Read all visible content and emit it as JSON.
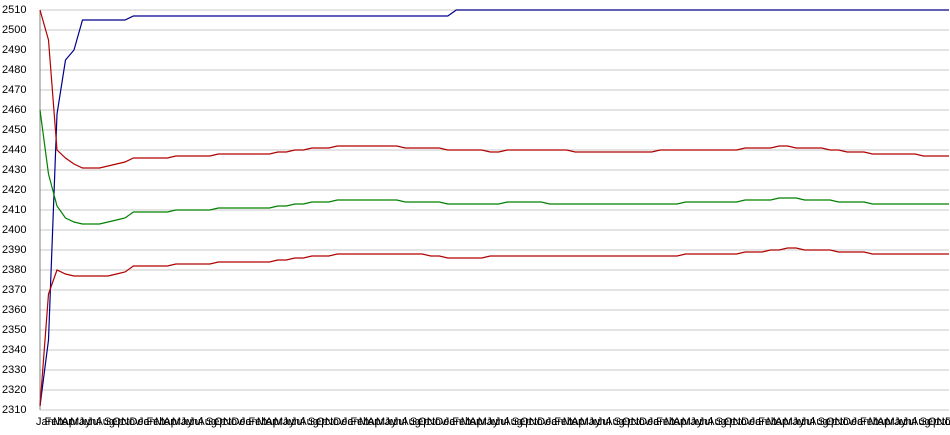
{
  "chart_data": {
    "type": "line",
    "categories": [
      "Jan",
      "Feb",
      "Mar",
      "Apr",
      "May",
      "Jun",
      "Jul",
      "Aug",
      "Sep",
      "Oct",
      "Nov",
      "Dec",
      "Jan",
      "Feb",
      "Mar",
      "Apr",
      "May",
      "Jun",
      "Jul",
      "Aug",
      "Sep",
      "Oct",
      "Nov",
      "Dec",
      "Jan",
      "Feb",
      "Mar",
      "Apr",
      "May",
      "Jun",
      "Jul",
      "Aug",
      "Sep",
      "Oct",
      "Nov",
      "Dec",
      "Jan",
      "Feb",
      "Mar",
      "Apr",
      "May",
      "Jun",
      "Jul",
      "Aug",
      "Sep",
      "Oct",
      "Nov",
      "Dec",
      "Jan",
      "Feb",
      "Mar",
      "Apr",
      "May",
      "Jun",
      "Jul",
      "Aug",
      "Sep",
      "Oct",
      "Nov",
      "Dec",
      "Jan",
      "Feb",
      "Mar",
      "Apr",
      "May",
      "Jun",
      "Jul",
      "Aug",
      "Sep",
      "Oct",
      "Nov",
      "Dec",
      "Jan",
      "Feb",
      "Mar",
      "Apr",
      "May",
      "Jun",
      "Jul",
      "Aug",
      "Sep",
      "Oct",
      "Nov",
      "Dec",
      "Jan",
      "Feb",
      "Mar",
      "Apr",
      "May",
      "Jun",
      "Jul",
      "Aug",
      "Sep",
      "Oct",
      "Nov",
      "Dec",
      "Jan",
      "Feb",
      "Mar",
      "Apr",
      "May",
      "Jun",
      "Jul",
      "Aug",
      "Sep",
      "Oct",
      "Nov",
      "Dec"
    ],
    "series": [
      {
        "color": "#00008b",
        "values": [
          2312,
          2345,
          2458,
          2485,
          2490,
          2505,
          2505,
          2505,
          2505,
          2505,
          2505,
          2507,
          2507,
          2507,
          2507,
          2507,
          2507,
          2507,
          2507,
          2507,
          2507,
          2507,
          2507,
          2507,
          2507,
          2507,
          2507,
          2507,
          2507,
          2507,
          2507,
          2507,
          2507,
          2507,
          2507,
          2507,
          2507,
          2507,
          2507,
          2507,
          2507,
          2507,
          2507,
          2507,
          2507,
          2507,
          2507,
          2507,
          2507,
          2510,
          2510,
          2510,
          2510,
          2510,
          2510,
          2510,
          2510,
          2510,
          2510,
          2510,
          2510,
          2510,
          2510,
          2510,
          2510,
          2510,
          2510,
          2510,
          2510,
          2510,
          2510,
          2510,
          2510,
          2510,
          2510,
          2510,
          2510,
          2510,
          2510,
          2510,
          2510,
          2510,
          2510,
          2510,
          2510,
          2510,
          2510,
          2510,
          2510,
          2510,
          2510,
          2510,
          2510,
          2510,
          2510,
          2510,
          2510,
          2510,
          2510,
          2510,
          2510,
          2510,
          2510,
          2510,
          2510,
          2510,
          2510,
          2510
        ]
      },
      {
        "color": "#b00000",
        "values": [
          2510,
          2495,
          2440,
          2436,
          2433,
          2431,
          2431,
          2431,
          2432,
          2433,
          2434,
          2436,
          2436,
          2436,
          2436,
          2436,
          2437,
          2437,
          2437,
          2437,
          2437,
          2438,
          2438,
          2438,
          2438,
          2438,
          2438,
          2438,
          2439,
          2439,
          2440,
          2440,
          2441,
          2441,
          2441,
          2442,
          2442,
          2442,
          2442,
          2442,
          2442,
          2442,
          2442,
          2441,
          2441,
          2441,
          2441,
          2441,
          2440,
          2440,
          2440,
          2440,
          2440,
          2439,
          2439,
          2440,
          2440,
          2440,
          2440,
          2440,
          2440,
          2440,
          2440,
          2439,
          2439,
          2439,
          2439,
          2439,
          2439,
          2439,
          2439,
          2439,
          2439,
          2440,
          2440,
          2440,
          2440,
          2440,
          2440,
          2440,
          2440,
          2440,
          2440,
          2441,
          2441,
          2441,
          2441,
          2442,
          2442,
          2441,
          2441,
          2441,
          2441,
          2440,
          2440,
          2439,
          2439,
          2439,
          2438,
          2438,
          2438,
          2438,
          2438,
          2438,
          2437,
          2437,
          2437,
          2437
        ]
      },
      {
        "color": "#008000",
        "values": [
          2460,
          2428,
          2412,
          2406,
          2404,
          2403,
          2403,
          2403,
          2404,
          2405,
          2406,
          2409,
          2409,
          2409,
          2409,
          2409,
          2410,
          2410,
          2410,
          2410,
          2410,
          2411,
          2411,
          2411,
          2411,
          2411,
          2411,
          2411,
          2412,
          2412,
          2413,
          2413,
          2414,
          2414,
          2414,
          2415,
          2415,
          2415,
          2415,
          2415,
          2415,
          2415,
          2415,
          2414,
          2414,
          2414,
          2414,
          2414,
          2413,
          2413,
          2413,
          2413,
          2413,
          2413,
          2413,
          2414,
          2414,
          2414,
          2414,
          2414,
          2413,
          2413,
          2413,
          2413,
          2413,
          2413,
          2413,
          2413,
          2413,
          2413,
          2413,
          2413,
          2413,
          2413,
          2413,
          2413,
          2414,
          2414,
          2414,
          2414,
          2414,
          2414,
          2414,
          2415,
          2415,
          2415,
          2415,
          2416,
          2416,
          2416,
          2415,
          2415,
          2415,
          2415,
          2414,
          2414,
          2414,
          2414,
          2413,
          2413,
          2413,
          2413,
          2413,
          2413,
          2413,
          2413,
          2413,
          2413
        ]
      },
      {
        "color": "#b00000",
        "values": [
          2312,
          2368,
          2380,
          2378,
          2377,
          2377,
          2377,
          2377,
          2377,
          2378,
          2379,
          2382,
          2382,
          2382,
          2382,
          2382,
          2383,
          2383,
          2383,
          2383,
          2383,
          2384,
          2384,
          2384,
          2384,
          2384,
          2384,
          2384,
          2385,
          2385,
          2386,
          2386,
          2387,
          2387,
          2387,
          2388,
          2388,
          2388,
          2388,
          2388,
          2388,
          2388,
          2388,
          2388,
          2388,
          2388,
          2387,
          2387,
          2386,
          2386,
          2386,
          2386,
          2386,
          2387,
          2387,
          2387,
          2387,
          2387,
          2387,
          2387,
          2387,
          2387,
          2387,
          2387,
          2387,
          2387,
          2387,
          2387,
          2387,
          2387,
          2387,
          2387,
          2387,
          2387,
          2387,
          2387,
          2388,
          2388,
          2388,
          2388,
          2388,
          2388,
          2388,
          2389,
          2389,
          2389,
          2390,
          2390,
          2391,
          2391,
          2390,
          2390,
          2390,
          2390,
          2389,
          2389,
          2389,
          2389,
          2388,
          2388,
          2388,
          2388,
          2388,
          2388,
          2388,
          2388,
          2388,
          2388
        ]
      }
    ],
    "ylim": [
      2310,
      2510
    ],
    "yticks": [
      2310,
      2320,
      2330,
      2340,
      2350,
      2360,
      2370,
      2380,
      2390,
      2400,
      2410,
      2420,
      2430,
      2440,
      2450,
      2460,
      2470,
      2480,
      2490,
      2500,
      2510
    ],
    "grid": true
  }
}
